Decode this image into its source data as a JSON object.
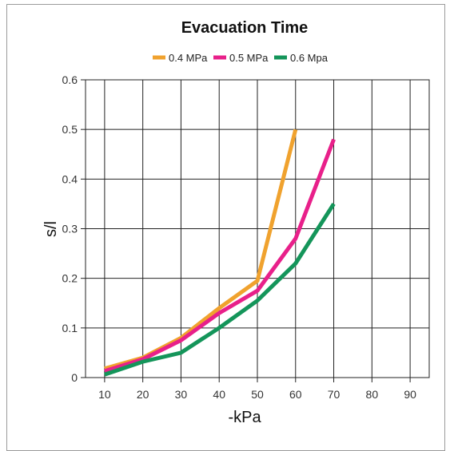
{
  "chart_data": {
    "type": "line",
    "title": "Evacuation Time",
    "xlabel": "-kPa",
    "ylabel": "s/l",
    "x_ticks": [
      "10",
      "20",
      "30",
      "40",
      "50",
      "60",
      "70",
      "80",
      "90"
    ],
    "y_ticks": [
      "0",
      "0.1",
      "0.2",
      "0.3",
      "0.4",
      "0.5",
      "0.6"
    ],
    "xlim": [
      5,
      95
    ],
    "ylim": [
      0,
      0.6
    ],
    "grid": true,
    "legend_position": "top-center",
    "series": [
      {
        "name": "0.4 MPa",
        "color": "#f0a22e",
        "points": [
          [
            10,
            0.018
          ],
          [
            20,
            0.04
          ],
          [
            30,
            0.08
          ],
          [
            40,
            0.14
          ],
          [
            50,
            0.195
          ],
          [
            60,
            0.5
          ]
        ]
      },
      {
        "name": "0.5 MPa",
        "color": "#e8208a",
        "points": [
          [
            10,
            0.013
          ],
          [
            20,
            0.037
          ],
          [
            30,
            0.075
          ],
          [
            40,
            0.13
          ],
          [
            50,
            0.175
          ],
          [
            60,
            0.28
          ],
          [
            70,
            0.48
          ]
        ]
      },
      {
        "name": "0.6 Mpa",
        "color": "#14955a",
        "points": [
          [
            10,
            0.006
          ],
          [
            20,
            0.032
          ],
          [
            30,
            0.05
          ],
          [
            40,
            0.1
          ],
          [
            50,
            0.155
          ],
          [
            60,
            0.23
          ],
          [
            70,
            0.35
          ]
        ]
      }
    ]
  }
}
